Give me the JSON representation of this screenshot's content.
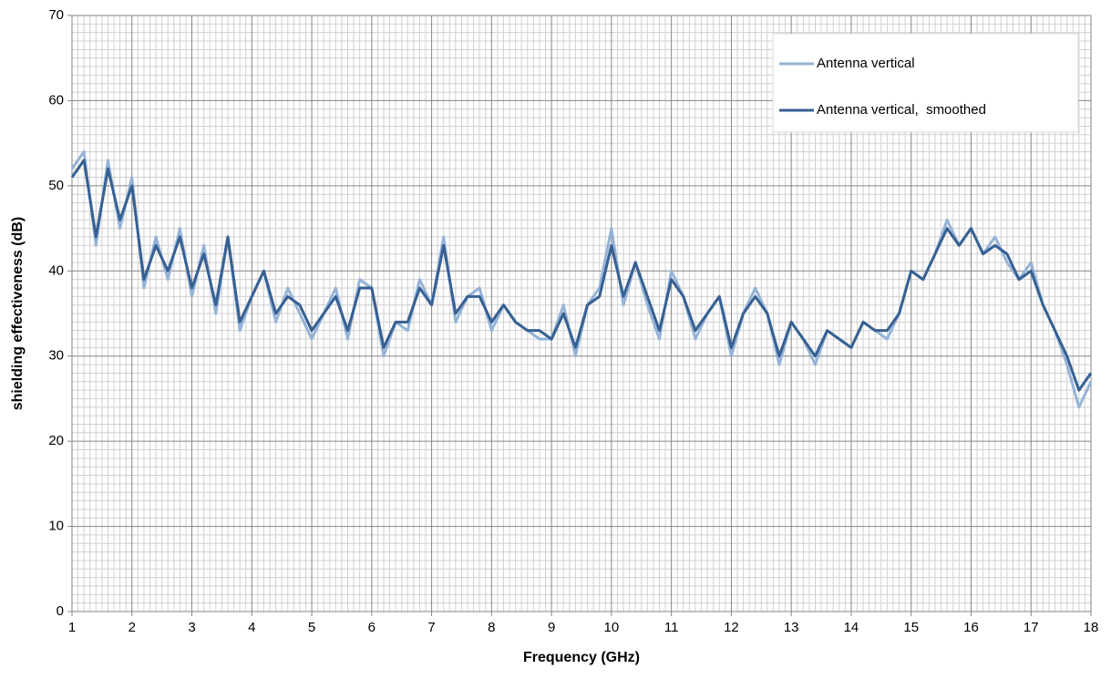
{
  "chart_data": {
    "type": "line",
    "x_label": "Frequency (GHz)",
    "y_label": "shielding effectiveness (dB)",
    "x": [
      1,
      1.2,
      1.4,
      1.6,
      1.8,
      2,
      2.2,
      2.4,
      2.6,
      2.8,
      3,
      3.2,
      3.4,
      3.6,
      3.8,
      4,
      4.2,
      4.4,
      4.6,
      4.8,
      5,
      5.2,
      5.4,
      5.6,
      5.8,
      6,
      6.2,
      6.4,
      6.6,
      6.8,
      7,
      7.2,
      7.4,
      7.6,
      7.8,
      8,
      8.2,
      8.4,
      8.6,
      8.8,
      9,
      9.2,
      9.4,
      9.6,
      9.8,
      10,
      10.2,
      10.4,
      10.6,
      10.8,
      11,
      11.2,
      11.4,
      11.6,
      11.8,
      12,
      12.2,
      12.4,
      12.6,
      12.8,
      13,
      13.2,
      13.4,
      13.6,
      13.8,
      14,
      14.2,
      14.4,
      14.6,
      14.8,
      15,
      15.2,
      15.4,
      15.6,
      15.8,
      16,
      16.2,
      16.4,
      16.6,
      16.8,
      17,
      17.2,
      17.4,
      17.6,
      17.8,
      18
    ],
    "series": [
      {
        "name": "Antenna vertical",
        "color": "#95b3d7",
        "width": 3,
        "values": [
          52,
          54,
          43,
          53,
          45,
          51,
          38,
          44,
          39,
          45,
          37,
          43,
          35,
          44,
          33,
          37,
          40,
          34,
          38,
          35,
          32,
          35,
          38,
          32,
          39,
          38,
          30,
          34,
          33,
          39,
          36,
          44,
          34,
          37,
          38,
          33,
          36,
          34,
          33,
          32,
          32,
          36,
          30,
          36,
          38,
          45,
          36,
          41,
          36,
          32,
          40,
          37,
          32,
          35,
          37,
          30,
          35,
          38,
          35,
          29,
          34,
          32,
          29,
          33,
          32,
          31,
          34,
          33,
          32,
          35,
          40,
          39,
          42,
          46,
          43,
          45,
          42,
          44,
          41,
          39,
          41,
          36,
          33,
          29,
          24,
          27
        ]
      },
      {
        "name": "Antenna vertical,  smoothed",
        "color": "#366092",
        "width": 3,
        "values": [
          51,
          53,
          44,
          52,
          46,
          50,
          39,
          43,
          40,
          44,
          38,
          42,
          36,
          44,
          34,
          37,
          40,
          35,
          37,
          36,
          33,
          35,
          37,
          33,
          38,
          38,
          31,
          34,
          34,
          38,
          36,
          43,
          35,
          37,
          37,
          34,
          36,
          34,
          33,
          33,
          32,
          35,
          31,
          36,
          37,
          43,
          37,
          41,
          37,
          33,
          39,
          37,
          33,
          35,
          37,
          31,
          35,
          37,
          35,
          30,
          34,
          32,
          30,
          33,
          32,
          31,
          34,
          33,
          33,
          35,
          40,
          39,
          42,
          45,
          43,
          45,
          42,
          43,
          42,
          39,
          40,
          36,
          33,
          30,
          26,
          28
        ]
      }
    ],
    "xlim": [
      1,
      18
    ],
    "xticks": [
      1,
      2,
      3,
      4,
      5,
      6,
      7,
      8,
      9,
      10,
      11,
      12,
      13,
      14,
      15,
      16,
      17,
      18
    ],
    "ylim": [
      0,
      70
    ],
    "yticks": [
      0,
      10,
      20,
      30,
      40,
      50,
      60,
      70
    ],
    "grid": true,
    "minor_grid": true,
    "legend": "upper right"
  }
}
